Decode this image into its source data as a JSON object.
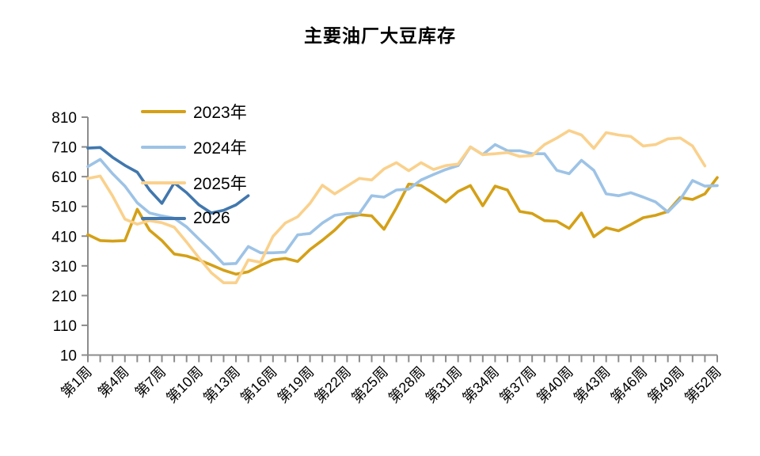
{
  "chart_data": {
    "type": "line",
    "title": "主要油厂大豆库存",
    "legend_position": "top-left",
    "grid": false,
    "axis_color": "#8C8C8C",
    "x_axis": {
      "weeks": 52,
      "label_every": 3,
      "label_prefix": "第",
      "label_suffix": "周",
      "tick_labels": [
        "第1周",
        "第4周",
        "第7周",
        "第10周",
        "第13周",
        "第16周",
        "第19周",
        "第22周",
        "第25周",
        "第28周",
        "第31周",
        "第34周",
        "第37周",
        "第40周",
        "第43周",
        "第46周",
        "第49周",
        "第52周"
      ]
    },
    "y_axis": {
      "min": 10,
      "max": 810,
      "step": 100,
      "tick_labels": [
        810,
        710,
        610,
        510,
        410,
        310,
        210,
        110,
        10
      ]
    },
    "series": [
      {
        "name": "2023年",
        "color": "#D4A017",
        "values": [
          415,
          395,
          393,
          395,
          500,
          430,
          395,
          350,
          343,
          330,
          313,
          295,
          282,
          290,
          312,
          330,
          335,
          325,
          365,
          396,
          430,
          472,
          482,
          478,
          433,
          505,
          585,
          580,
          554,
          525,
          560,
          580,
          512,
          578,
          565,
          493,
          486,
          462,
          460,
          436,
          488,
          408,
          438,
          428,
          449,
          472,
          480,
          493,
          540,
          533,
          552,
          607
        ]
      },
      {
        "name": "2024年",
        "color": "#9DC3E6",
        "values": [
          644,
          668,
          620,
          578,
          522,
          488,
          478,
          470,
          441,
          400,
          360,
          316,
          318,
          375,
          354,
          354,
          356,
          414,
          419,
          454,
          480,
          486,
          486,
          546,
          541,
          565,
          568,
          599,
          617,
          634,
          647,
          710,
          684,
          718,
          697,
          697,
          687,
          687,
          631,
          620,
          665,
          631,
          552,
          546,
          556,
          541,
          525,
          491,
          533,
          597,
          578,
          580
        ]
      },
      {
        "name": "2025年",
        "color": "#FAD18C",
        "values": [
          604,
          612,
          545,
          467,
          450,
          462,
          455,
          440,
          390,
          337,
          287,
          253,
          253,
          330,
          322,
          409,
          454,
          475,
          520,
          581,
          552,
          578,
          604,
          599,
          636,
          657,
          630,
          657,
          634,
          647,
          652,
          710,
          684,
          687,
          691,
          678,
          681,
          718,
          740,
          765,
          750,
          705,
          758,
          750,
          745,
          713,
          718,
          737,
          740,
          713,
          646
        ]
      },
      {
        "name": "2026",
        "color": "#4177AE",
        "values": [
          706,
          708,
          675,
          648,
          625,
          565,
          520,
          589,
          556,
          515,
          488,
          497,
          515,
          546
        ]
      }
    ]
  }
}
